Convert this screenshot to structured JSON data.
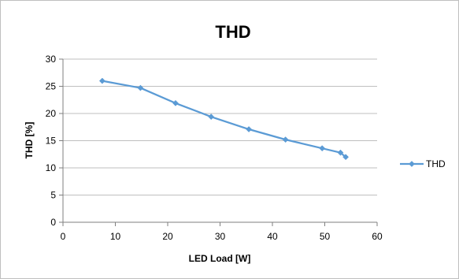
{
  "chart_data": {
    "type": "scatter",
    "title": "THD",
    "xlabel": "LED Load [W]",
    "ylabel": "THD [%]",
    "xlim": [
      0,
      60
    ],
    "ylim": [
      0,
      30
    ],
    "xticks": [
      0,
      10,
      20,
      30,
      40,
      50,
      60
    ],
    "yticks": [
      0,
      5,
      10,
      15,
      20,
      25,
      30
    ],
    "grid": "horizontal",
    "legend": "right",
    "series": [
      {
        "name": "THD",
        "color": "#5b9bd5",
        "marker": "diamond",
        "line": true,
        "x": [
          7.5,
          14.8,
          21.5,
          28.3,
          35.5,
          42.5,
          49.5,
          53.0,
          54.0
        ],
        "y": [
          26.0,
          24.7,
          21.9,
          19.4,
          17.1,
          15.2,
          13.6,
          12.8,
          12.0
        ]
      }
    ]
  }
}
